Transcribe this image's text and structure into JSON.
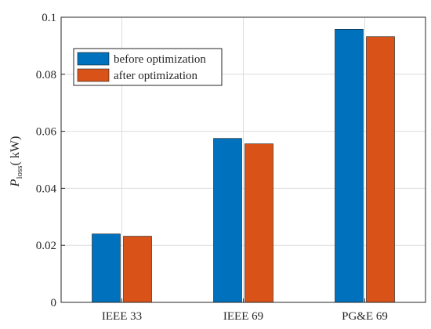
{
  "chart_data": {
    "type": "bar",
    "title": "",
    "xlabel": "",
    "ylabel": {
      "symbol": "P",
      "subscript": "loss",
      "unit": "( kW)"
    },
    "categories": [
      "IEEE 33",
      "IEEE 69",
      "PG&E 69"
    ],
    "series": [
      {
        "name": "before optimization",
        "color": "#0072BD",
        "values": [
          0.024,
          0.0575,
          0.0958
        ]
      },
      {
        "name": "after optimization",
        "color": "#D95319",
        "values": [
          0.0232,
          0.0556,
          0.0932
        ]
      }
    ],
    "ylim": [
      0,
      0.1
    ],
    "yticks": [
      0,
      0.02,
      0.04,
      0.06,
      0.08,
      0.1
    ],
    "ytick_labels": [
      "0",
      "0.02",
      "0.04",
      "0.06",
      "0.08",
      "0.1"
    ],
    "grid": true,
    "legend_position": "top-left"
  }
}
